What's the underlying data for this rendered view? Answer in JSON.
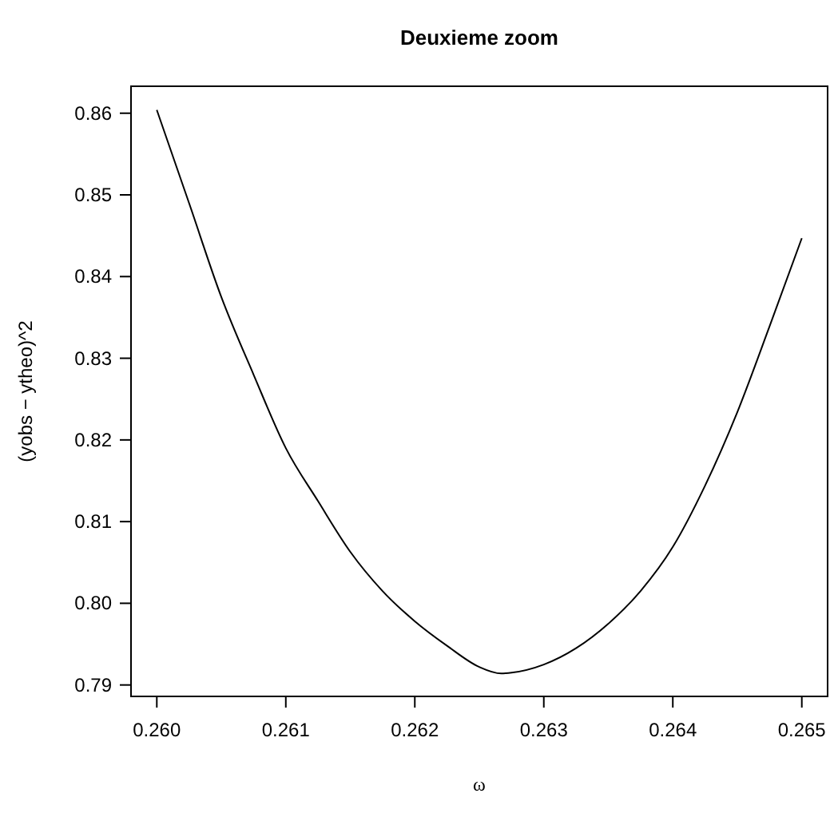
{
  "chart_data": {
    "type": "line",
    "title": "Deuxieme zoom",
    "xlabel": "ω",
    "ylabel": "(yobs − ytheo)^2",
    "x": [
      0.26,
      0.26025,
      0.2605,
      0.26075,
      0.261,
      0.26125,
      0.2615,
      0.26175,
      0.262,
      0.26225,
      0.2625,
      0.26267,
      0.26275,
      0.263,
      0.26325,
      0.2635,
      0.26375,
      0.264,
      0.26425,
      0.2645,
      0.26475,
      0.265
    ],
    "series": [
      {
        "color": "#000000",
        "values": [
          0.8604,
          0.849,
          0.8375,
          0.828,
          0.819,
          0.8125,
          0.8063,
          0.8015,
          0.7978,
          0.7948,
          0.7922,
          0.7914,
          0.7915,
          0.7925,
          0.7945,
          0.7975,
          0.8015,
          0.8069,
          0.8144,
          0.8234,
          0.8339,
          0.8447
        ]
      }
    ],
    "xlim": [
      0.2598,
      0.2652
    ],
    "xticks": [
      {
        "value": 0.26,
        "label": "0.260"
      },
      0.261,
      0.262,
      0.263,
      0.264,
      {
        "value": 0.265,
        "label": "0.265"
      }
    ],
    "ylim": [
      0.7886,
      0.8633
    ],
    "yticks": [
      0.79,
      {
        "value": 0.8,
        "label": "0.80"
      },
      0.81,
      0.82,
      0.83,
      0.84,
      0.85,
      0.86
    ],
    "grid": false,
    "marker": "none",
    "line_style": "solid"
  }
}
